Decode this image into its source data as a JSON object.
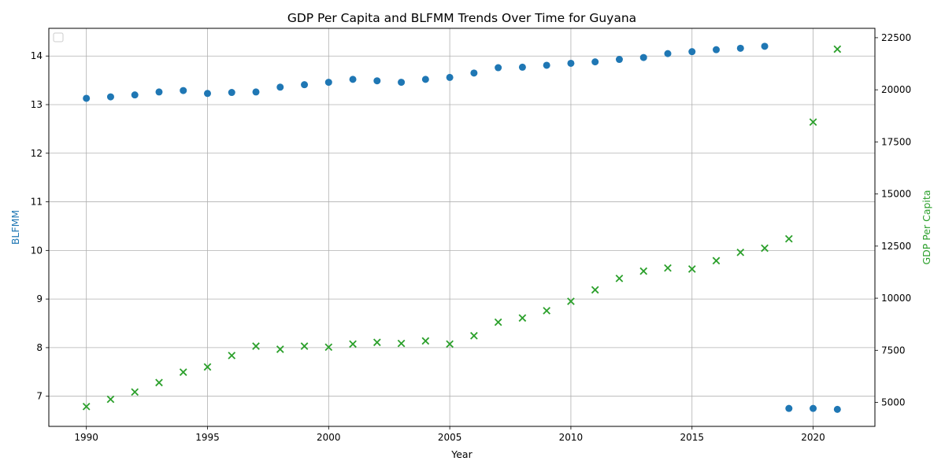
{
  "chart_data": {
    "type": "scatter",
    "title": "GDP Per Capita and BLFMM Trends Over Time for Guyana",
    "xlabel": "Year",
    "ylabel_left": "BLFMM",
    "ylabel_right": "GDP Per Capita",
    "xlim": [
      1988.45,
      2022.55
    ],
    "ylim_left": [
      6.38,
      14.57
    ],
    "ylim_right": [
      3850,
      22950
    ],
    "x_ticks": [
      1990,
      1995,
      2000,
      2005,
      2010,
      2015,
      2020
    ],
    "y_left_ticks": [
      7,
      8,
      9,
      10,
      11,
      12,
      13,
      14
    ],
    "y_right_ticks": [
      5000,
      7500,
      10000,
      12500,
      15000,
      17500,
      20000,
      22500
    ],
    "grid": true,
    "legend": "upper-left (empty)",
    "colors": {
      "blfmm": "#1f77b4",
      "gdp": "#2ca02c",
      "left_label": "#1f77b4",
      "right_label": "#2ca02c",
      "grid": "#b0b0b0"
    },
    "series": [
      {
        "name": "BLFMM",
        "axis": "left",
        "marker": "circle",
        "x": [
          1990,
          1991,
          1992,
          1993,
          1994,
          1995,
          1996,
          1997,
          1998,
          1999,
          2000,
          2001,
          2002,
          2003,
          2004,
          2005,
          2006,
          2007,
          2008,
          2009,
          2010,
          2011,
          2012,
          2013,
          2014,
          2015,
          2016,
          2017,
          2018,
          2019,
          2020,
          2021
        ],
        "y": [
          13.13,
          13.16,
          13.2,
          13.26,
          13.29,
          13.23,
          13.25,
          13.26,
          13.36,
          13.41,
          13.46,
          13.52,
          13.49,
          13.46,
          13.52,
          13.56,
          13.65,
          13.76,
          13.77,
          13.81,
          13.85,
          13.88,
          13.93,
          13.97,
          14.05,
          14.09,
          14.13,
          14.16,
          14.2,
          6.75,
          6.75,
          6.73
        ]
      },
      {
        "name": "GDP Per Capita",
        "axis": "right",
        "marker": "x",
        "x": [
          1990,
          1991,
          1992,
          1993,
          1994,
          1995,
          1996,
          1997,
          1998,
          1999,
          2000,
          2001,
          2002,
          2003,
          2004,
          2005,
          2006,
          2007,
          2008,
          2009,
          2010,
          2011,
          2012,
          2013,
          2014,
          2015,
          2016,
          2017,
          2018,
          2019,
          2020,
          2021
        ],
        "y": [
          4800,
          5150,
          5500,
          5950,
          6450,
          6700,
          7250,
          7700,
          7550,
          7700,
          7650,
          7800,
          7880,
          7830,
          7950,
          7800,
          8200,
          8850,
          9050,
          9400,
          9850,
          10400,
          10950,
          11300,
          11450,
          11400,
          11800,
          12200,
          12400,
          12850,
          18450,
          21950
        ]
      }
    ]
  }
}
